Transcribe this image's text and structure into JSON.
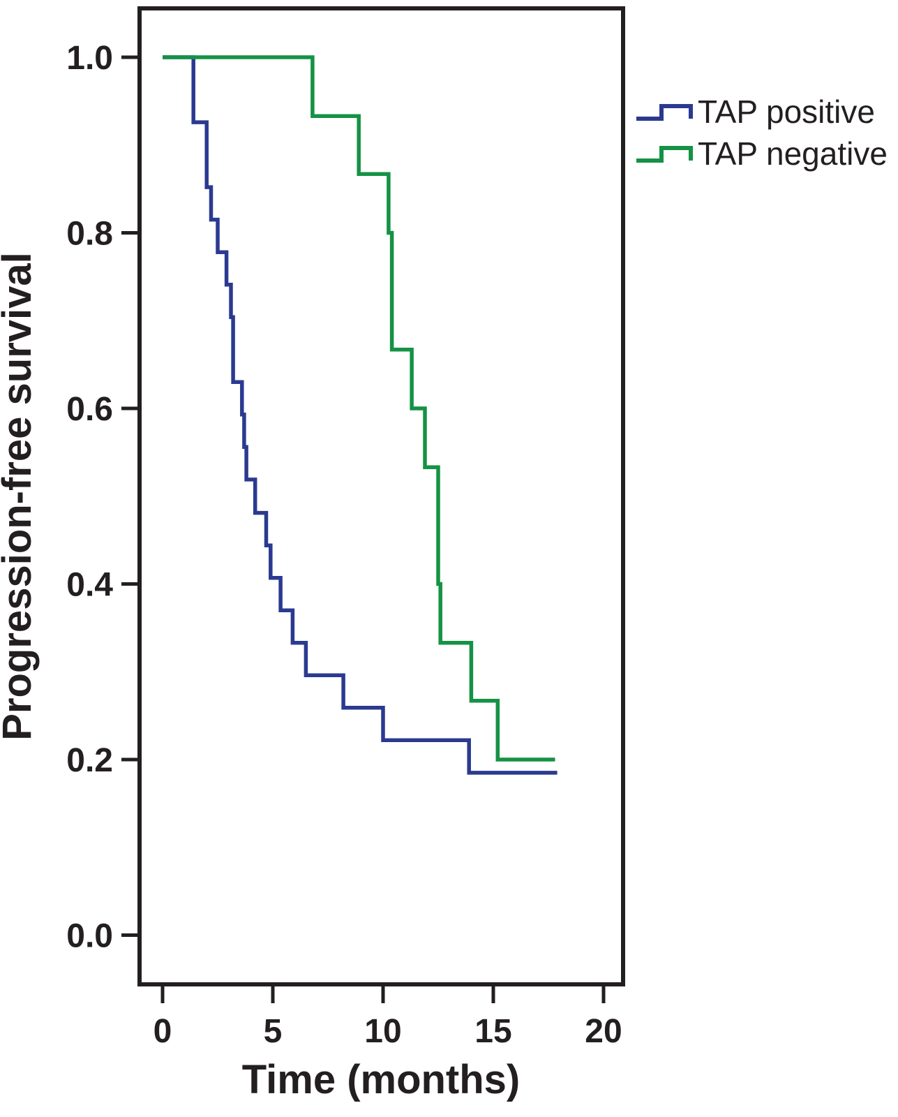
{
  "chart_data": {
    "type": "line",
    "subtype": "kaplan-meier-step-survival",
    "title": "",
    "xlabel": "Time (months)",
    "ylabel": "Progression-free survival",
    "grid": false,
    "x_axis": {
      "label": "Time (months)",
      "ticks": [
        "0",
        "5",
        "10",
        "15",
        "20"
      ],
      "tick_values": [
        0,
        5,
        10,
        15,
        20
      ],
      "range": [
        0,
        20
      ]
    },
    "y_axis": {
      "label": "Progression-free survival",
      "ticks": [
        "1.0",
        "0.8",
        "0.6",
        "0.4",
        "0.2",
        "0.0"
      ],
      "tick_values": [
        1.0,
        0.8,
        0.6,
        0.4,
        0.2,
        0.0
      ],
      "range": [
        0.0,
        1.0
      ]
    },
    "legend": {
      "position": "outside-top-right",
      "entries": [
        {
          "label": "TAP positive",
          "color": "#2b3a90"
        },
        {
          "label": "TAP negative",
          "color": "#159245"
        }
      ]
    },
    "series": [
      {
        "name": "TAP positive",
        "color": "#2b3a90",
        "end_time": 17.9,
        "steps": [
          [
            0,
            1.0
          ],
          [
            1.4,
            0.926
          ],
          [
            2.0,
            0.852
          ],
          [
            2.2,
            0.815
          ],
          [
            2.5,
            0.778
          ],
          [
            2.9,
            0.741
          ],
          [
            3.1,
            0.704
          ],
          [
            3.2,
            0.63
          ],
          [
            3.6,
            0.593
          ],
          [
            3.7,
            0.556
          ],
          [
            3.8,
            0.519
          ],
          [
            4.2,
            0.481
          ],
          [
            4.7,
            0.444
          ],
          [
            4.9,
            0.407
          ],
          [
            5.35,
            0.37
          ],
          [
            5.9,
            0.333
          ],
          [
            6.5,
            0.296
          ],
          [
            8.2,
            0.259
          ],
          [
            10.0,
            0.222
          ],
          [
            13.9,
            0.185
          ]
        ]
      },
      {
        "name": "TAP negative",
        "color": "#159245",
        "end_time": 17.8,
        "steps": [
          [
            0,
            1.0
          ],
          [
            6.8,
            0.933
          ],
          [
            8.9,
            0.867
          ],
          [
            10.25,
            0.8
          ],
          [
            10.4,
            0.667
          ],
          [
            11.3,
            0.6
          ],
          [
            11.9,
            0.533
          ],
          [
            12.5,
            0.4
          ],
          [
            12.6,
            0.333
          ],
          [
            14.0,
            0.267
          ],
          [
            15.2,
            0.2
          ]
        ]
      }
    ]
  }
}
